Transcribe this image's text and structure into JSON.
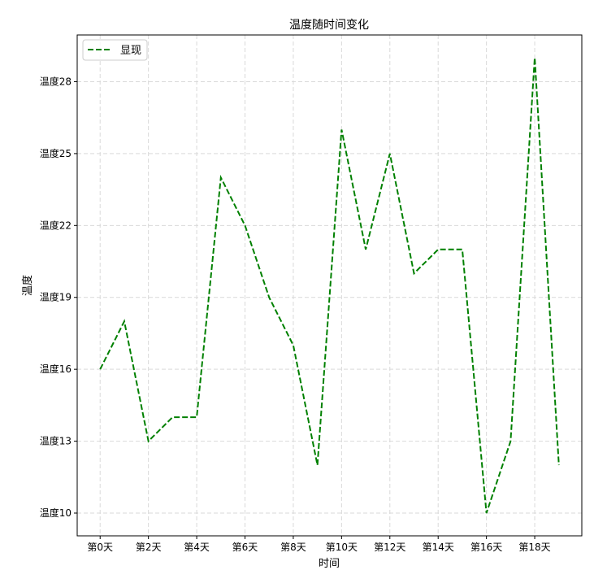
{
  "chart_data": {
    "type": "line",
    "title": "温度随时间变化",
    "xlabel": "时间",
    "ylabel": "温度",
    "x": [
      0,
      1,
      2,
      3,
      4,
      5,
      6,
      7,
      8,
      9,
      10,
      11,
      12,
      13,
      14,
      15,
      16,
      17,
      18,
      19
    ],
    "series": [
      {
        "name": "显现",
        "color": "#008000",
        "linestyle": "dashed",
        "values": [
          16,
          18,
          13,
          14,
          14,
          24,
          22,
          19,
          17,
          12,
          26,
          21,
          25,
          20,
          21,
          21,
          10,
          13,
          29,
          12
        ]
      }
    ],
    "xticks": [
      0,
      2,
      4,
      6,
      8,
      10,
      12,
      14,
      16,
      18
    ],
    "xtick_labels": [
      "第0天",
      "第2天",
      "第4天",
      "第6天",
      "第8天",
      "第10天",
      "第12天",
      "第14天",
      "第16天",
      "第18天"
    ],
    "yticks": [
      10,
      13,
      16,
      19,
      22,
      25,
      28
    ],
    "ytick_labels": [
      "温度10",
      "温度13",
      "温度16",
      "温度19",
      "温度22",
      "温度25",
      "温度28"
    ],
    "xlim": [
      -0.95,
      19.95
    ],
    "ylim": [
      9.05,
      29.95
    ],
    "grid": true,
    "legend_position": "upper-left"
  }
}
